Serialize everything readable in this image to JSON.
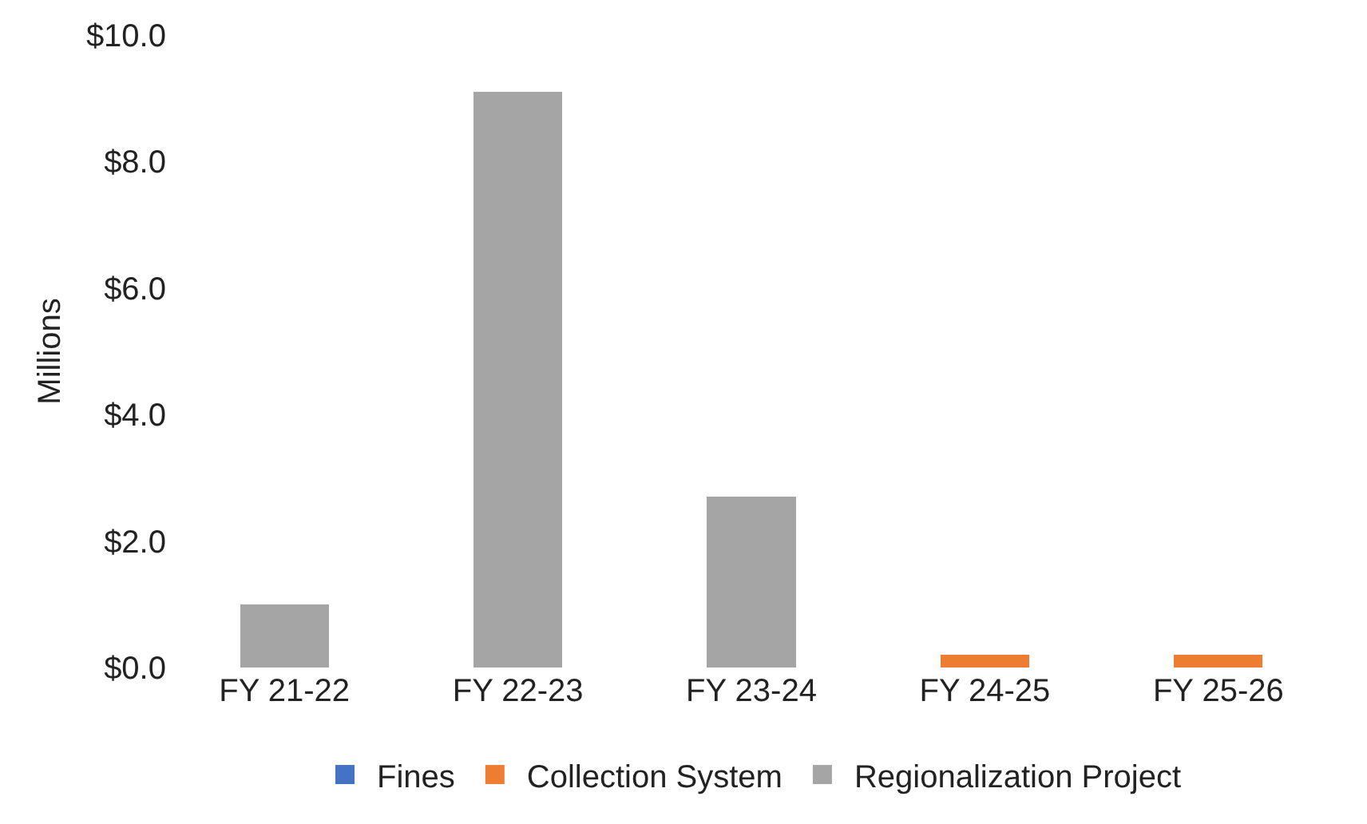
{
  "chart_data": {
    "type": "bar",
    "stacked": true,
    "ylabel": "Millions",
    "categories": [
      "FY 21-22",
      "FY 22-23",
      "FY 23-24",
      "FY 24-25",
      "FY 25-26"
    ],
    "series": [
      {
        "name": "Fines",
        "color": "#4472c4",
        "values": [
          0,
          0,
          0,
          0,
          0
        ]
      },
      {
        "name": "Collection System",
        "color": "#ed7d31",
        "values": [
          0,
          0,
          0,
          0.2,
          0.2
        ]
      },
      {
        "name": "Regionalization Project",
        "color": "#a5a5a5",
        "values": [
          1.0,
          9.1,
          2.7,
          0,
          0
        ]
      }
    ],
    "ylim": [
      0,
      10
    ],
    "yticks": [
      {
        "value": 0,
        "label": "$0.0"
      },
      {
        "value": 2,
        "label": "$2.0"
      },
      {
        "value": 4,
        "label": "$4.0"
      },
      {
        "value": 6,
        "label": "$6.0"
      },
      {
        "value": 8,
        "label": "$8.0"
      },
      {
        "value": 10,
        "label": "$10.0"
      }
    ],
    "grid": false,
    "legend": "bottom"
  }
}
